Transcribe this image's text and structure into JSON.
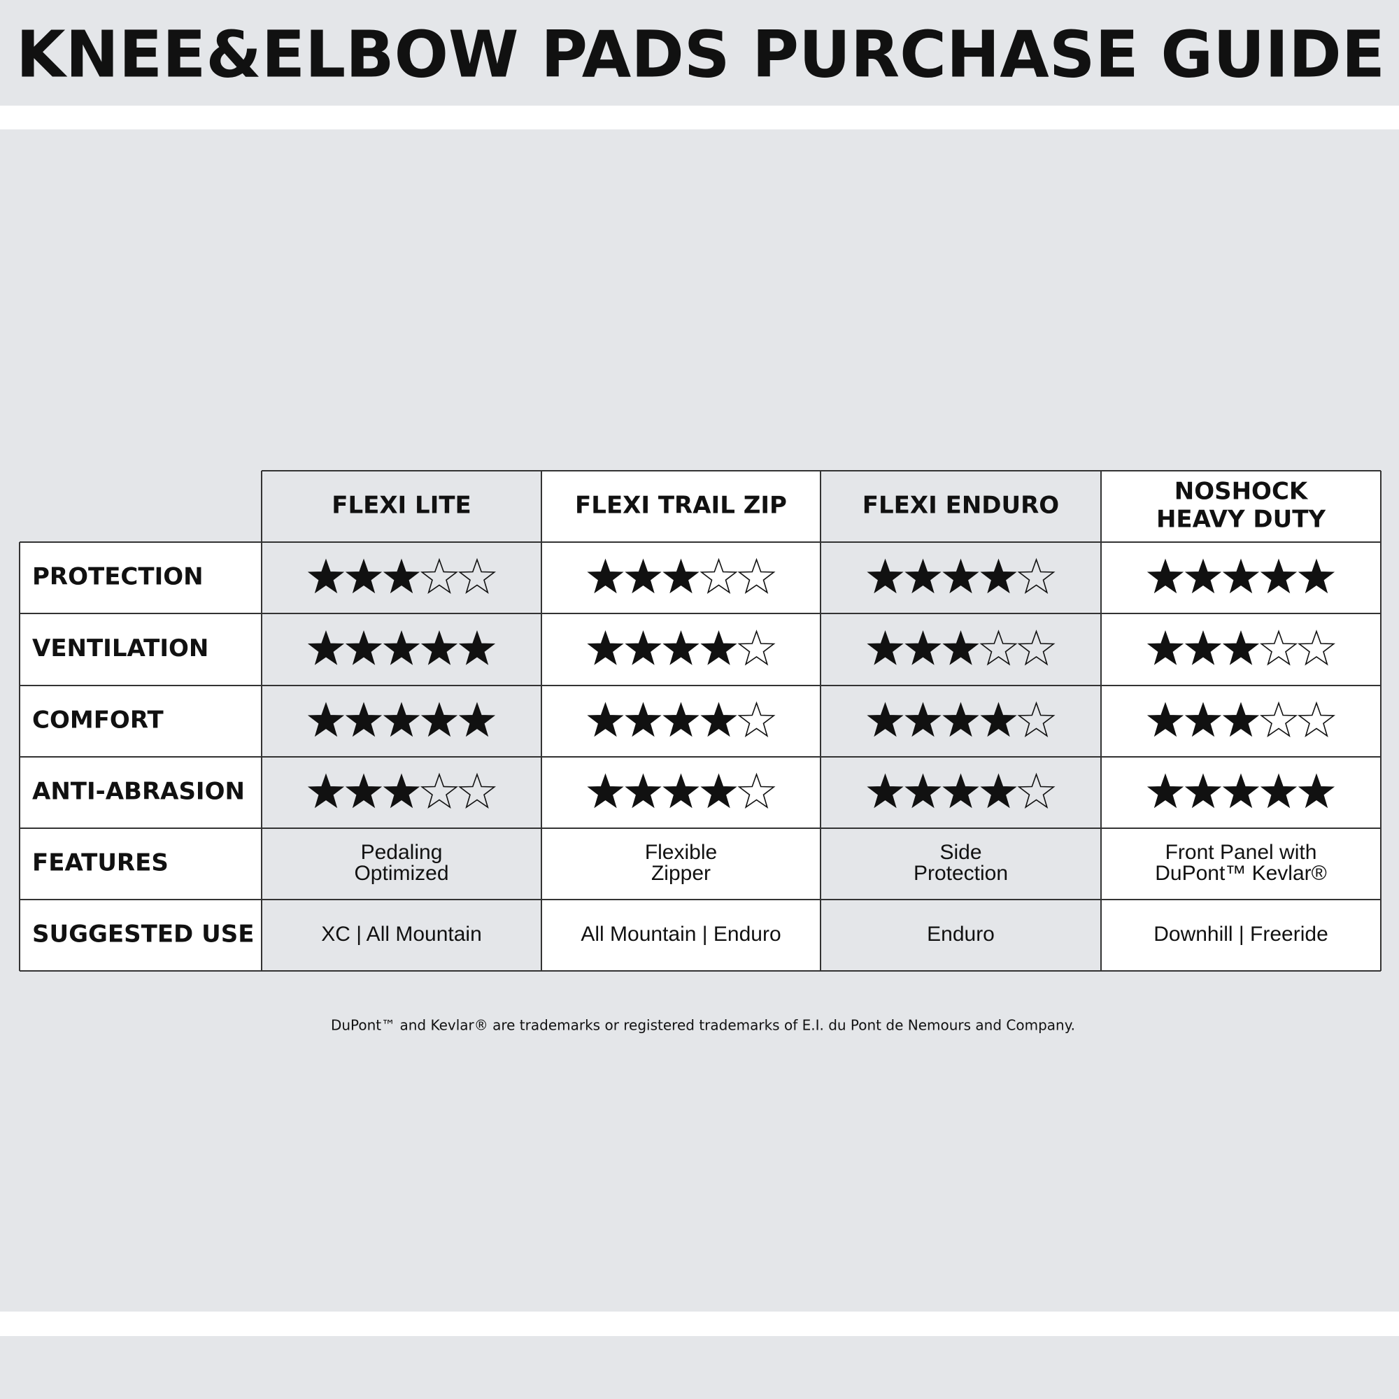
{
  "title": "KNEE&ELBOW PADS PURCHASE GUIDE",
  "table": {
    "columns": [
      [
        "FLEXI LITE"
      ],
      [
        "FLEXI TRAIL ZIP"
      ],
      [
        "FLEXI ENDURO"
      ],
      [
        "NOSHOCK",
        "HEAVY DUTY"
      ]
    ],
    "rating_max": 5,
    "ratings": [
      {
        "label": "PROTECTION",
        "values": [
          3,
          3,
          4,
          5
        ]
      },
      {
        "label": "VENTILATION",
        "values": [
          5,
          4,
          3,
          3
        ]
      },
      {
        "label": "COMFORT",
        "values": [
          5,
          4,
          4,
          3
        ]
      },
      {
        "label": "ANTI-ABRASION",
        "values": [
          3,
          4,
          4,
          5
        ]
      }
    ],
    "features": {
      "label": "FEATURES",
      "values": [
        [
          "Pedaling",
          "Optimized"
        ],
        [
          "Flexible",
          "Zipper"
        ],
        [
          "Side",
          "Protection"
        ],
        [
          "Front Panel with",
          "DuPont™ Kevlar®"
        ]
      ]
    },
    "suggested_use": {
      "label": "SUGGESTED USE",
      "values": [
        "XC | All Mountain",
        "All Mountain | Enduro",
        "Enduro",
        "Downhill | Freeride"
      ]
    }
  },
  "footnote": "DuPont™ and Kevlar® are trademarks or registered trademarks of E.I. du Pont de Nemours and Company."
}
